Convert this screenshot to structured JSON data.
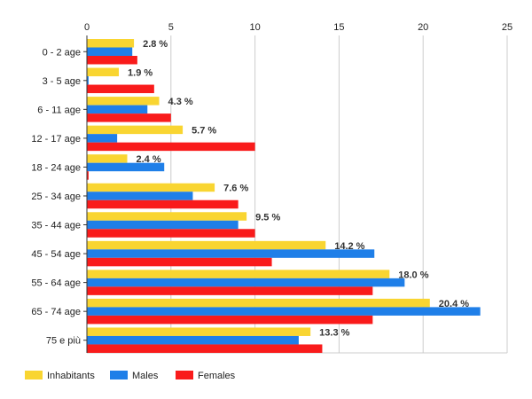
{
  "chart_data": {
    "type": "bar",
    "orientation": "horizontal",
    "categories": [
      "0 - 2 age",
      "3 - 5 age",
      "6 - 11 age",
      "12 - 17 age",
      "18 - 24 age",
      "25 - 34 age",
      "35 - 44 age",
      "45 - 54 age",
      "55 - 64 age",
      "65 - 74 age",
      "75 e più"
    ],
    "series": [
      {
        "name": "Inhabitants",
        "color": "#f9d531",
        "values": [
          2.8,
          1.9,
          4.3,
          5.7,
          2.4,
          7.6,
          9.5,
          14.2,
          18.0,
          20.4,
          13.3
        ]
      },
      {
        "name": "Males",
        "color": "#1f7fe8",
        "values": [
          2.7,
          0.1,
          3.6,
          1.8,
          4.6,
          6.3,
          9.0,
          17.1,
          18.9,
          23.4,
          12.6
        ]
      },
      {
        "name": "Females",
        "color": "#f91b1b",
        "values": [
          3.0,
          4.0,
          5.0,
          10.0,
          0.1,
          9.0,
          10.0,
          11.0,
          17.0,
          17.0,
          14.0
        ]
      }
    ],
    "data_labels": [
      "2.8 %",
      "1.9 %",
      "4.3 %",
      "5.7 %",
      "2.4 %",
      "7.6 %",
      "9.5 %",
      "14.2 %",
      "18.0 %",
      "20.4 %",
      "13.3 %"
    ],
    "x_ticks": [
      "0",
      "5",
      "10",
      "15",
      "20",
      "25"
    ],
    "xlim": [
      0,
      25
    ],
    "x_axis_position": "top",
    "grid": true,
    "legend_position": "bottom-left"
  }
}
